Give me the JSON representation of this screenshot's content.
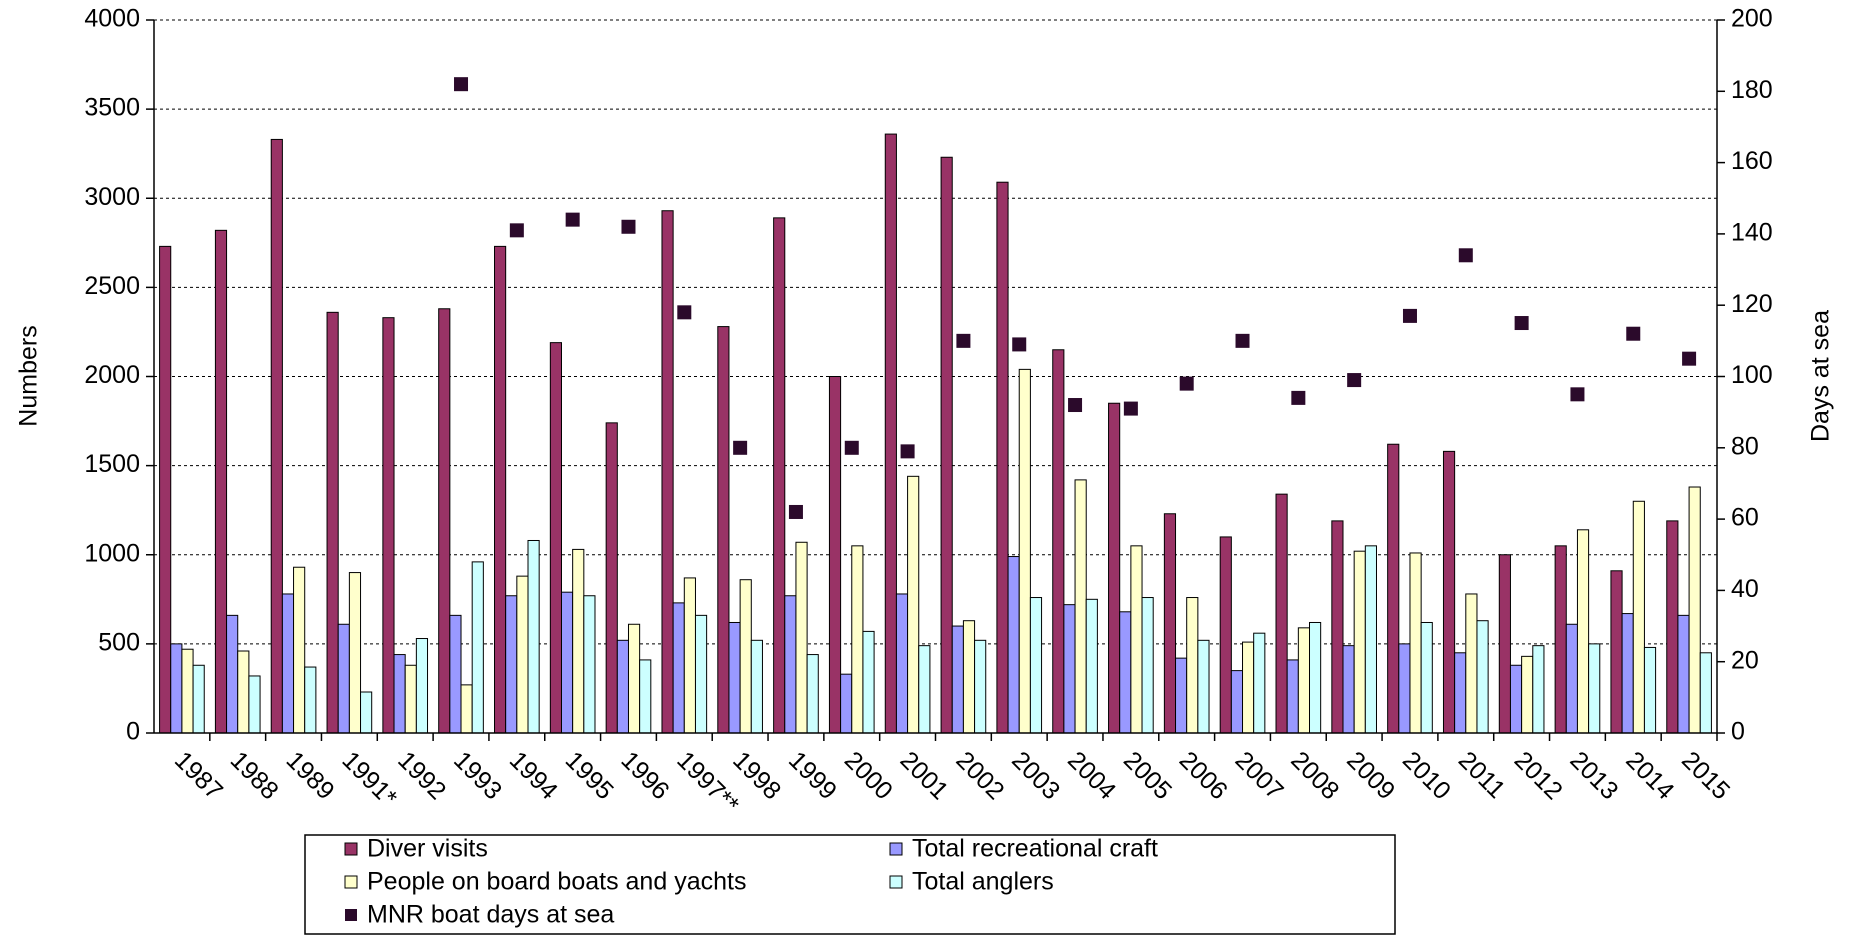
{
  "chart_data": {
    "type": "bar",
    "categories": [
      "1987",
      "1988",
      "1989",
      "1991*",
      "1992",
      "1993",
      "1994",
      "1995",
      "1996",
      "1997**",
      "1998",
      "1999",
      "2000",
      "2001",
      "2002",
      "2003",
      "2004",
      "2005",
      "2006",
      "2007",
      "2008",
      "2009",
      "2010",
      "2011",
      "2012",
      "2013",
      "2014",
      "2015"
    ],
    "series": [
      {
        "name": "Diver visits",
        "color": "#993366",
        "values": [
          2730,
          2820,
          3330,
          2360,
          2330,
          2380,
          2730,
          2190,
          1740,
          2930,
          2280,
          2890,
          2000,
          3360,
          3230,
          3090,
          2150,
          1850,
          1230,
          1100,
          1340,
          1190,
          1620,
          1580,
          1000,
          1050,
          910,
          1190
        ]
      },
      {
        "name": "Total recreational craft",
        "color": "#9999ff",
        "values": [
          500,
          660,
          780,
          610,
          440,
          660,
          770,
          790,
          520,
          730,
          620,
          770,
          330,
          780,
          600,
          990,
          720,
          680,
          420,
          350,
          410,
          490,
          500,
          450,
          380,
          610,
          670,
          660
        ]
      },
      {
        "name": "People on board boats and yachts",
        "color": "#ffffcc",
        "values": [
          470,
          460,
          930,
          900,
          380,
          270,
          880,
          1030,
          610,
          870,
          860,
          1070,
          1050,
          1440,
          630,
          2040,
          1420,
          1050,
          760,
          510,
          590,
          1020,
          1010,
          780,
          430,
          1140,
          1300,
          1380
        ]
      },
      {
        "name": "Total anglers",
        "color": "#ccffff",
        "values": [
          380,
          320,
          370,
          230,
          530,
          960,
          1080,
          770,
          410,
          660,
          520,
          440,
          570,
          490,
          520,
          760,
          750,
          760,
          520,
          560,
          620,
          1050,
          620,
          630,
          490,
          500,
          480,
          450
        ]
      },
      {
        "name": "MNR boat days at sea",
        "color": "#2b0a2b",
        "type": "scatter",
        "axis": "y2",
        "values": [
          null,
          null,
          null,
          null,
          null,
          182,
          141,
          144,
          142,
          118,
          80,
          62,
          80,
          79,
          110,
          109,
          92,
          91,
          98,
          110,
          94,
          99,
          117,
          134,
          115,
          95,
          112,
          105
        ]
      }
    ],
    "ylabel": "Numbers",
    "y2label": "Days at sea",
    "ylim": [
      0,
      4000
    ],
    "yticks": [
      0,
      500,
      1000,
      1500,
      2000,
      2500,
      3000,
      3500,
      4000
    ],
    "y2lim": [
      0,
      200
    ],
    "y2ticks": [
      0,
      20,
      40,
      60,
      80,
      100,
      120,
      140,
      160,
      180,
      200
    ],
    "grid": true,
    "legend": "bottom"
  }
}
